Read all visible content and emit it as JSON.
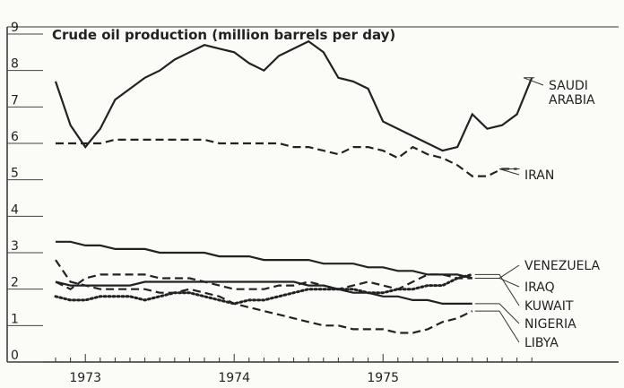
{
  "chart_data": {
    "type": "line",
    "title": "Crude oil production (million barrels per day)",
    "categories": [
      null,
      null,
      "1973",
      null,
      null,
      null,
      null,
      null,
      null,
      null,
      null,
      null,
      "1974",
      null,
      null,
      null,
      null,
      null,
      null,
      null,
      null,
      null,
      "1975",
      null,
      null,
      null,
      null,
      null,
      null,
      null,
      null,
      null,
      null
    ],
    "ylim": [
      0,
      9
    ],
    "yticks": [
      0,
      1,
      2,
      3,
      4,
      5,
      6,
      7,
      8,
      9
    ],
    "grid": false,
    "series": [
      {
        "name": "SAUDI ARABIA",
        "color": "#222222",
        "style": "solid",
        "values": [
          7.7,
          6.5,
          5.9,
          6.4,
          7.2,
          7.5,
          7.8,
          8.0,
          8.3,
          8.5,
          8.7,
          8.6,
          8.5,
          8.2,
          8.0,
          8.4,
          8.6,
          8.8,
          8.5,
          7.8,
          7.7,
          7.5,
          6.6,
          6.4,
          6.2,
          6.0,
          5.8,
          5.9,
          6.8,
          6.4,
          6.5,
          6.8,
          7.8
        ]
      },
      {
        "name": "IRAN",
        "color": "#222222",
        "style": "dashed",
        "values": [
          6.0,
          6.0,
          6.0,
          6.0,
          6.1,
          6.1,
          6.1,
          6.1,
          6.1,
          6.1,
          6.1,
          6.0,
          6.0,
          6.0,
          6.0,
          6.0,
          5.9,
          5.9,
          5.8,
          5.7,
          5.9,
          5.9,
          5.8,
          5.6,
          5.9,
          5.7,
          5.6,
          5.4,
          5.1,
          5.1,
          5.3,
          5.3,
          null
        ]
      },
      {
        "name": "VENEZUELA",
        "color": "#222222",
        "style": "solid",
        "values": [
          3.3,
          3.3,
          3.2,
          3.2,
          3.1,
          3.1,
          3.1,
          3.0,
          3.0,
          3.0,
          3.0,
          2.9,
          2.9,
          2.9,
          2.8,
          2.8,
          2.8,
          2.8,
          2.7,
          2.7,
          2.7,
          2.6,
          2.6,
          2.5,
          2.5,
          2.4,
          2.4,
          2.4,
          2.3,
          null,
          null,
          null,
          null
        ]
      },
      {
        "name": "IRAQ",
        "color": "#222222",
        "style": "dashed",
        "values": [
          2.2,
          2.0,
          2.3,
          2.4,
          2.4,
          2.4,
          2.4,
          2.3,
          2.3,
          2.3,
          2.2,
          2.1,
          2.0,
          2.0,
          2.0,
          2.1,
          2.1,
          2.2,
          2.1,
          2.0,
          2.1,
          2.2,
          2.1,
          2.0,
          2.2,
          2.4,
          2.4,
          2.3,
          2.3,
          null,
          null,
          null,
          null
        ]
      },
      {
        "name": "KUWAIT",
        "color": "#222222",
        "style": "dotted",
        "values": [
          1.8,
          1.7,
          1.7,
          1.8,
          1.8,
          1.8,
          1.7,
          1.8,
          1.9,
          1.9,
          1.8,
          1.7,
          1.6,
          1.7,
          1.7,
          1.8,
          1.9,
          2.0,
          2.0,
          2.0,
          2.0,
          1.9,
          1.9,
          2.0,
          2.0,
          2.1,
          2.1,
          2.3,
          2.4,
          null,
          null,
          null,
          null
        ]
      },
      {
        "name": "NIGERIA",
        "color": "#222222",
        "style": "solid",
        "values": [
          2.2,
          2.1,
          2.1,
          2.1,
          2.1,
          2.1,
          2.2,
          2.2,
          2.2,
          2.2,
          2.2,
          2.2,
          2.2,
          2.2,
          2.2,
          2.2,
          2.2,
          2.1,
          2.1,
          2.0,
          1.9,
          1.9,
          1.8,
          1.8,
          1.7,
          1.7,
          1.6,
          1.6,
          1.6,
          null,
          null,
          null,
          null
        ]
      },
      {
        "name": "LIBYA",
        "color": "#222222",
        "style": "dashed",
        "values": [
          2.8,
          2.2,
          2.1,
          2.0,
          2.0,
          2.0,
          2.0,
          1.9,
          1.9,
          2.0,
          1.9,
          1.8,
          1.6,
          1.5,
          1.4,
          1.3,
          1.2,
          1.1,
          1.0,
          1.0,
          0.9,
          0.9,
          0.9,
          0.8,
          0.8,
          0.9,
          1.1,
          1.2,
          1.4,
          null,
          null,
          null,
          null
        ]
      }
    ]
  }
}
